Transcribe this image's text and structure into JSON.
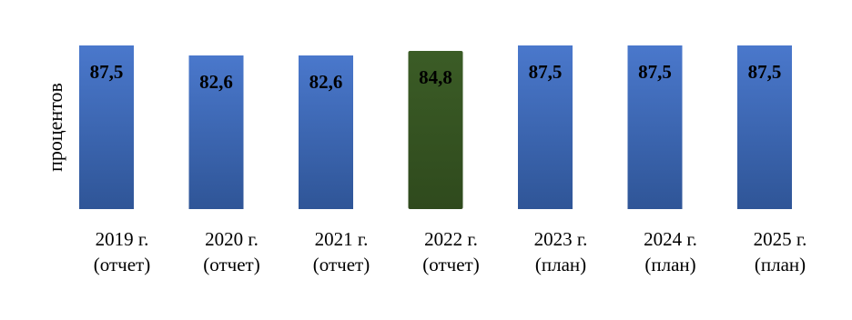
{
  "chart_data": {
    "type": "bar",
    "ylabel": "процентов",
    "xlabel": "",
    "categories": [
      [
        "2019 г.",
        "(отчет)"
      ],
      [
        "2020 г.",
        "(отчет)"
      ],
      [
        "2021 г.",
        "(отчет)"
      ],
      [
        "2022 г.",
        "(отчет)"
      ],
      [
        "2023 г.",
        "(план)"
      ],
      [
        "2024 г.",
        "(план)"
      ],
      [
        "2025 г.",
        "(план)"
      ]
    ],
    "values": [
      87.5,
      82.6,
      82.6,
      84.8,
      87.5,
      87.5,
      87.5
    ],
    "value_labels": [
      "87,5",
      "82,6",
      "82,6",
      "84,8",
      "87,5",
      "87,5",
      "87,5"
    ],
    "bar_colors": [
      "#4472c4",
      "#4472c4",
      "#4472c4",
      "#375623",
      "#4472c4",
      "#4472c4",
      "#4472c4"
    ],
    "grid": false,
    "legend": "none"
  }
}
